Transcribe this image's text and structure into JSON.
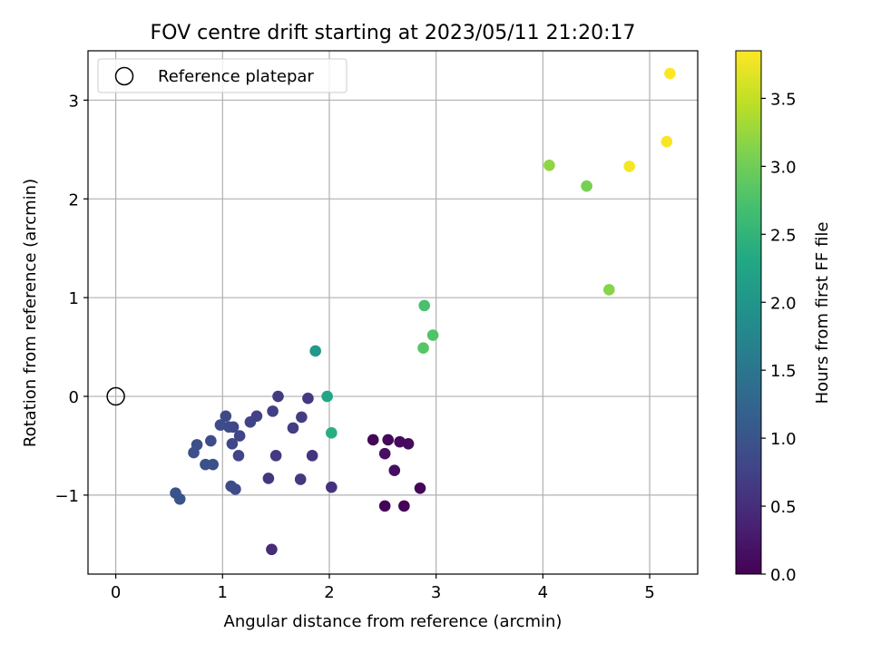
{
  "chart_data": {
    "type": "scatter",
    "title": "FOV centre drift starting at 2023/05/11 21:20:17",
    "xlabel": "Angular distance from reference (arcmin)",
    "ylabel": "Rotation from reference (arcmin)",
    "xlim": [
      -0.26,
      5.45
    ],
    "ylim": [
      -1.8,
      3.5
    ],
    "x_ticks": [
      0,
      1,
      2,
      3,
      4,
      5
    ],
    "y_ticks": [
      -1,
      0,
      1,
      2,
      3
    ],
    "grid": true,
    "legend": {
      "placement": "top-left",
      "entries": [
        "Reference platepar"
      ]
    },
    "reference_point": {
      "x": 0,
      "y": 0,
      "label": "Reference platepar"
    },
    "colorbar": {
      "label": "Hours from first FF file",
      "min": 0.0,
      "max": 3.85,
      "ticks": [
        0.0,
        0.5,
        1.0,
        1.5,
        2.0,
        2.5,
        3.0,
        3.5
      ],
      "colormap": "viridis"
    },
    "points": [
      {
        "x": 2.41,
        "y": -0.44,
        "c": 0.05
      },
      {
        "x": 2.55,
        "y": -0.44,
        "c": 0.08
      },
      {
        "x": 2.66,
        "y": -0.46,
        "c": 0.1
      },
      {
        "x": 2.74,
        "y": -0.48,
        "c": 0.12
      },
      {
        "x": 2.52,
        "y": -0.58,
        "c": 0.15
      },
      {
        "x": 2.61,
        "y": -0.75,
        "c": 0.14
      },
      {
        "x": 2.85,
        "y": -0.93,
        "c": 0.06
      },
      {
        "x": 2.52,
        "y": -1.11,
        "c": 0.03
      },
      {
        "x": 2.7,
        "y": -1.11,
        "c": 0.02
      },
      {
        "x": 1.46,
        "y": -1.55,
        "c": 0.48
      },
      {
        "x": 2.02,
        "y": -0.92,
        "c": 0.55
      },
      {
        "x": 1.84,
        "y": -0.6,
        "c": 0.58
      },
      {
        "x": 1.73,
        "y": -0.84,
        "c": 0.62
      },
      {
        "x": 1.5,
        "y": -0.6,
        "c": 0.65
      },
      {
        "x": 1.43,
        "y": -0.83,
        "c": 0.6
      },
      {
        "x": 1.8,
        "y": -0.02,
        "c": 0.63
      },
      {
        "x": 1.52,
        "y": 0.0,
        "c": 0.66
      },
      {
        "x": 1.66,
        "y": -0.32,
        "c": 0.68
      },
      {
        "x": 1.74,
        "y": -0.21,
        "c": 0.7
      },
      {
        "x": 1.47,
        "y": -0.15,
        "c": 0.72
      },
      {
        "x": 1.32,
        "y": -0.2,
        "c": 0.74
      },
      {
        "x": 1.26,
        "y": -0.26,
        "c": 0.76
      },
      {
        "x": 1.16,
        "y": -0.4,
        "c": 0.78
      },
      {
        "x": 1.15,
        "y": -0.6,
        "c": 0.8
      },
      {
        "x": 1.09,
        "y": -0.48,
        "c": 0.82
      },
      {
        "x": 1.1,
        "y": -0.31,
        "c": 0.84
      },
      {
        "x": 1.06,
        "y": -0.31,
        "c": 0.85
      },
      {
        "x": 1.03,
        "y": -0.2,
        "c": 0.86
      },
      {
        "x": 0.98,
        "y": -0.29,
        "c": 0.88
      },
      {
        "x": 1.08,
        "y": -0.91,
        "c": 0.87
      },
      {
        "x": 1.12,
        "y": -0.94,
        "c": 0.89
      },
      {
        "x": 0.89,
        "y": -0.45,
        "c": 0.9
      },
      {
        "x": 0.76,
        "y": -0.49,
        "c": 0.92
      },
      {
        "x": 0.73,
        "y": -0.57,
        "c": 0.94
      },
      {
        "x": 0.84,
        "y": -0.69,
        "c": 0.95
      },
      {
        "x": 0.91,
        "y": -0.69,
        "c": 0.96
      },
      {
        "x": 0.56,
        "y": -0.98,
        "c": 0.98
      },
      {
        "x": 0.6,
        "y": -1.04,
        "c": 1.0
      },
      {
        "x": 1.87,
        "y": 0.46,
        "c": 2.05
      },
      {
        "x": 1.98,
        "y": 0.0,
        "c": 2.25
      },
      {
        "x": 2.02,
        "y": -0.37,
        "c": 2.4
      },
      {
        "x": 2.89,
        "y": 0.92,
        "c": 2.72
      },
      {
        "x": 2.97,
        "y": 0.62,
        "c": 2.78
      },
      {
        "x": 2.88,
        "y": 0.49,
        "c": 2.82
      },
      {
        "x": 4.41,
        "y": 2.13,
        "c": 3.05
      },
      {
        "x": 4.06,
        "y": 2.34,
        "c": 3.2
      },
      {
        "x": 4.62,
        "y": 1.08,
        "c": 3.15
      },
      {
        "x": 4.81,
        "y": 2.33,
        "c": 3.8
      },
      {
        "x": 5.16,
        "y": 2.58,
        "c": 3.82
      },
      {
        "x": 5.19,
        "y": 3.27,
        "c": 3.85
      }
    ]
  }
}
